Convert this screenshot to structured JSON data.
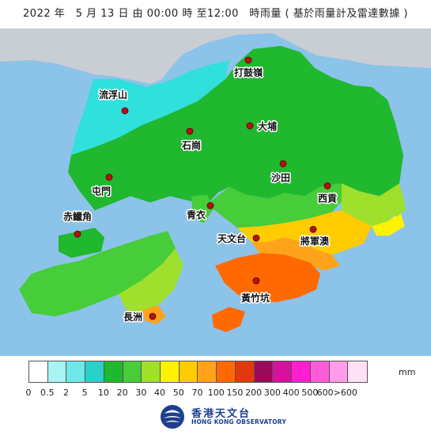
{
  "title": "2022 年　5 月 13 日  由 00:00  時 至12:00　時雨量 ( 基於雨量計及雷達數據 )",
  "places": [
    {
      "id": "ta-kwu-ling",
      "name": "打鼓嶺"
    },
    {
      "id": "lau-fau-shan",
      "name": "流浮山"
    },
    {
      "id": "tai-po",
      "name": "大埔"
    },
    {
      "id": "shek-kong",
      "name": "石崗"
    },
    {
      "id": "tuen-mun",
      "name": "屯門"
    },
    {
      "id": "sha-tin",
      "name": "沙田"
    },
    {
      "id": "sai-kung",
      "name": "西貢"
    },
    {
      "id": "tsing-yi",
      "name": "青衣"
    },
    {
      "id": "chek-lap-kok",
      "name": "赤鱲角"
    },
    {
      "id": "tsim-sha-tsui",
      "name": "天文台"
    },
    {
      "id": "tseung-kwan-o",
      "name": "將軍澳"
    },
    {
      "id": "wong-chuk-hang",
      "name": "黃竹坑"
    },
    {
      "id": "cheung-chau",
      "name": "長洲"
    }
  ],
  "legend": {
    "unit": "mm",
    "colors": [
      "#ffffff",
      "#a8f4f4",
      "#6ee8e8",
      "#2dcfc9",
      "#1fb82e",
      "#47cc3a",
      "#9fe02d",
      "#fff200",
      "#ffcc00",
      "#ffa31a",
      "#ff6a00",
      "#e03a0c",
      "#9c0a5c",
      "#d4129e",
      "#ff1fcf",
      "#ff5cdc",
      "#ff9be8",
      "#ffe0f7"
    ],
    "ticks": [
      "0",
      "0.5",
      "2",
      "5",
      "10",
      "20",
      "30",
      "40",
      "50",
      "70",
      "100",
      "150",
      "200",
      "300",
      "400",
      "500",
      "600>600"
    ]
  },
  "logo": {
    "name_zh": "香港天文台",
    "name_en": "HONG KONG OBSERVATORY"
  }
}
